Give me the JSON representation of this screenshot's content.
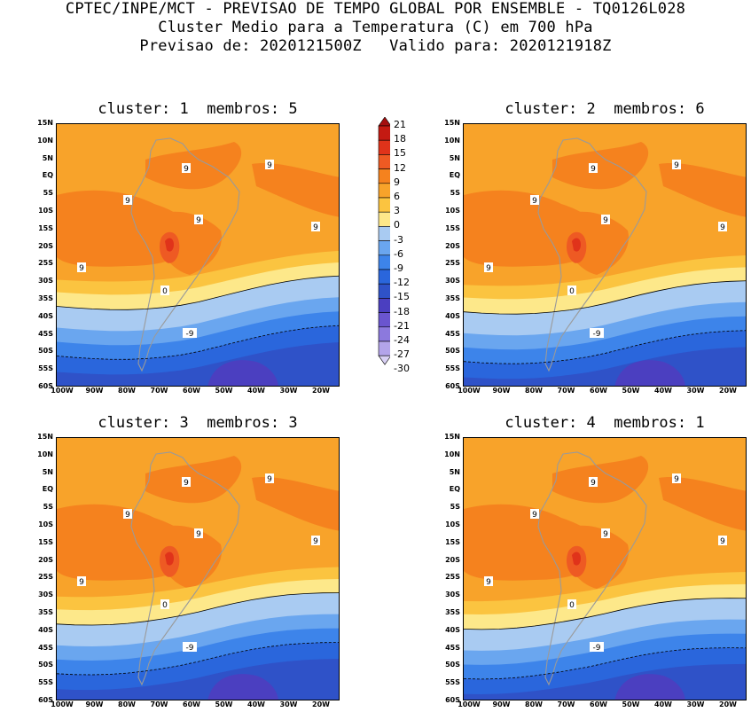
{
  "header": {
    "line1": "CPTEC/INPE/MCT - PREVISAO DE TEMPO GLOBAL POR ENSEMBLE - TQ0126L028",
    "line2": "Cluster Medio para a Temperatura (C) em 700 hPa",
    "line3": "Previsao de: 2020121500Z   Valido para: 2020121918Z"
  },
  "panels": [
    {
      "title": "cluster: 1  membros: 5"
    },
    {
      "title": "cluster: 2  membros: 6"
    },
    {
      "title": "cluster: 3  membros: 3"
    },
    {
      "title": "cluster: 4  membros: 1"
    }
  ],
  "lat_labels": [
    "15N",
    "10N",
    "5N",
    "EQ",
    "5S",
    "10S",
    "15S",
    "20S",
    "25S",
    "30S",
    "35S",
    "40S",
    "45S",
    "50S",
    "55S",
    "60S"
  ],
  "lon_labels": [
    "100W",
    "90W",
    "80W",
    "70W",
    "60W",
    "50W",
    "40W",
    "30W",
    "20W"
  ],
  "colorbar": {
    "levels": [
      "21",
      "18",
      "15",
      "12",
      "9",
      "6",
      "3",
      "0",
      "-3",
      "-6",
      "-9",
      "-12",
      "-15",
      "-18",
      "-21",
      "-24",
      "-27",
      "-30"
    ],
    "colors": [
      "#a50f0f",
      "#c41a12",
      "#e0331a",
      "#ee5a23",
      "#f5821e",
      "#f8a32a",
      "#fbc440",
      "#fde88a",
      "#a9cbf2",
      "#6aa6ef",
      "#3d84ea",
      "#2a66dc",
      "#2f52c8",
      "#4b3fc0",
      "#6a55cf",
      "#8c79dd",
      "#b3a4ea",
      "#d8d0f4"
    ]
  },
  "contour_labels": {
    "nine": "9",
    "zero": "0",
    "minus_nine": "-9"
  }
}
